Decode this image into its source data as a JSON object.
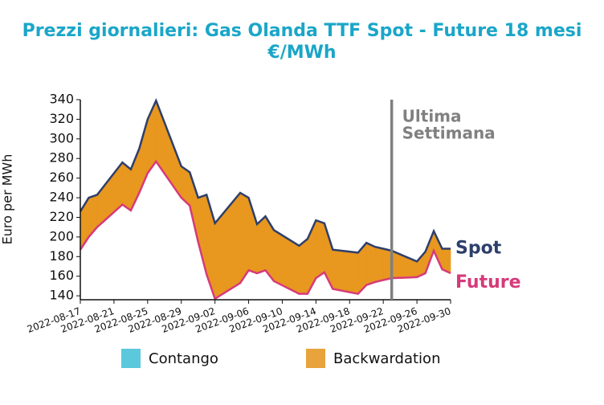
{
  "chart_data": {
    "type": "line",
    "title": [
      "Prezzi giornalieri: Gas Olanda TTF Spot - Future 18 mesi",
      "€/MWh"
    ],
    "y_label": "Euro per MWh",
    "x": [
      "2022-08-17",
      "2022-08-18",
      "2022-08-19",
      "2022-08-22",
      "2022-08-23",
      "2022-08-24",
      "2022-08-25",
      "2022-08-26",
      "2022-08-29",
      "2022-08-30",
      "2022-08-31",
      "2022-09-01",
      "2022-09-02",
      "2022-09-05",
      "2022-09-06",
      "2022-09-07",
      "2022-09-08",
      "2022-09-09",
      "2022-09-12",
      "2022-09-13",
      "2022-09-14",
      "2022-09-15",
      "2022-09-16",
      "2022-09-19",
      "2022-09-20",
      "2022-09-21",
      "2022-09-22",
      "2022-09-23",
      "2022-09-26",
      "2022-09-27",
      "2022-09-28",
      "2022-09-29",
      "2022-09-30"
    ],
    "series": [
      {
        "name": "Spot",
        "color": "#2e3f6b",
        "values": [
          226,
          240,
          243,
          276,
          269,
          290,
          320,
          339,
          272,
          266,
          240,
          243,
          214,
          245,
          240,
          213,
          221,
          207,
          191,
          198,
          217,
          214,
          187,
          184,
          194,
          190,
          188,
          186,
          175,
          185,
          206,
          188,
          188
        ]
      },
      {
        "name": "Future",
        "color": "#d63a7a",
        "values": [
          187,
          200,
          210,
          233,
          227,
          245,
          265,
          277,
          240,
          232,
          195,
          162,
          137,
          153,
          166,
          163,
          166,
          155,
          142,
          142,
          158,
          164,
          147,
          142,
          151,
          154,
          156,
          158,
          159,
          163,
          186,
          167,
          163
        ]
      }
    ],
    "legend": [
      {
        "name": "Contango",
        "color": "#5bc8dc"
      },
      {
        "name": "Backwardation",
        "color": "#e8a33d"
      }
    ],
    "fill_colors": {
      "contango": "#5bc8dc",
      "backwardation": "#e8971f"
    },
    "annotation": {
      "x": "2022-09-23",
      "lines": [
        "Ultima",
        "Settimana"
      ],
      "color": "#808080"
    },
    "xlim": [
      "2022-08-17",
      "2022-09-30"
    ],
    "xticks": [
      "2022-08-17",
      "2022-08-21",
      "2022-08-25",
      "2022-08-29",
      "2022-09-02",
      "2022-09-06",
      "2022-09-10",
      "2022-09-14",
      "2022-09-18",
      "2022-09-22",
      "2022-09-26",
      "2022-09-30"
    ],
    "ylim": [
      136,
      340
    ],
    "yticks": [
      140,
      160,
      180,
      200,
      220,
      240,
      260,
      280,
      300,
      320,
      340
    ]
  }
}
